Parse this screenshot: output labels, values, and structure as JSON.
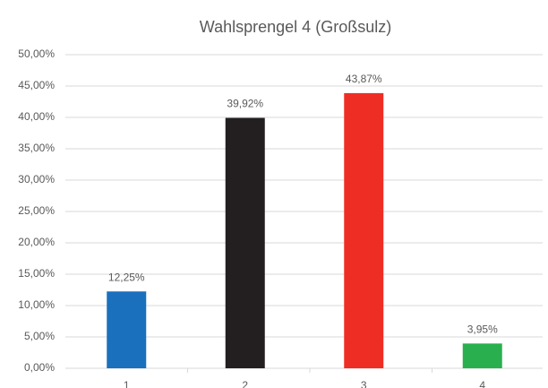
{
  "chart_data": {
    "type": "bar",
    "title": "Wahlsprengel 4 (Großsulz)",
    "categories": [
      "1",
      "2",
      "3",
      "4"
    ],
    "values": [
      12.25,
      39.92,
      43.87,
      3.95
    ],
    "value_labels": [
      "12,25%",
      "39,92%",
      "43,87%",
      "3,95%"
    ],
    "colors": [
      "#1a70bd",
      "#231f20",
      "#ee2e24",
      "#2aaf4f"
    ],
    "ylim": [
      0,
      50
    ],
    "yticks": [
      {
        "value": 0,
        "label": "0,00%"
      },
      {
        "value": 5,
        "label": "5,00%"
      },
      {
        "value": 10,
        "label": "10,00%"
      },
      {
        "value": 15,
        "label": "15,00%"
      },
      {
        "value": 20,
        "label": "20,00%"
      },
      {
        "value": 25,
        "label": "25,00%"
      },
      {
        "value": 30,
        "label": "30,00%"
      },
      {
        "value": 35,
        "label": "35,00%"
      },
      {
        "value": 40,
        "label": "40,00%"
      },
      {
        "value": 45,
        "label": "45,00%"
      },
      {
        "value": 50,
        "label": "50,00%"
      }
    ],
    "grid": true
  }
}
